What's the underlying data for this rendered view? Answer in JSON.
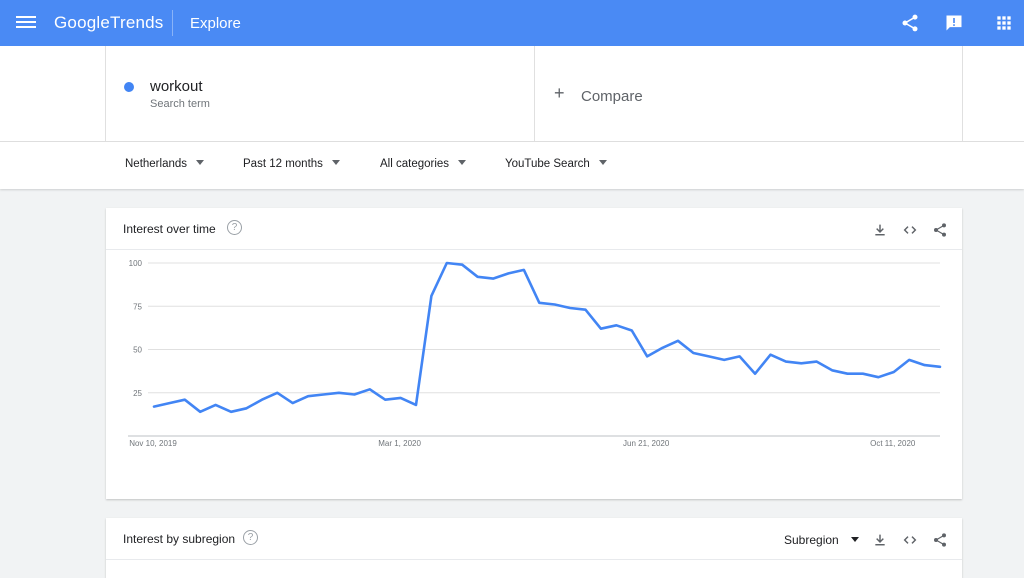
{
  "header": {
    "logo_google": "Google",
    "logo_trends": "Trends",
    "section": "Explore",
    "icons": [
      "menu-icon",
      "share-icon",
      "feedback-icon",
      "apps-icon"
    ],
    "bar_color": "#4a8af4"
  },
  "search": {
    "term": "workout",
    "term_sub": "Search term",
    "term_color": "#4285f4",
    "compare_label": "Compare"
  },
  "filters": {
    "region": "Netherlands",
    "time": "Past 12 months",
    "category": "All categories",
    "property": "YouTube Search"
  },
  "interest_over_time": {
    "title": "Interest over time",
    "help": "?",
    "icons": [
      "download-icon",
      "embed-icon",
      "share-icon"
    ]
  },
  "interest_by_subregion": {
    "title": "Interest by subregion",
    "help": "?",
    "selector": "Subregion",
    "icons": [
      "download-icon",
      "embed-icon",
      "share-icon"
    ]
  },
  "chart_data": {
    "type": "line",
    "title": "",
    "xlabel": "",
    "ylabel": "",
    "ylim": [
      0,
      100
    ],
    "yticks": [
      25,
      50,
      75,
      100
    ],
    "x_tick_labels": [
      "Nov 10, 2019",
      "Mar 1, 2020",
      "Jun 21, 2020",
      "Oct 11, 2020"
    ],
    "x_start": "2019-11-10",
    "x_step_days": 7,
    "grid": true,
    "series": [
      {
        "name": "workout",
        "color": "#4285f4",
        "values": [
          17,
          19,
          21,
          14,
          18,
          14,
          16,
          21,
          25,
          19,
          23,
          24,
          25,
          24,
          27,
          21,
          22,
          18,
          81,
          100,
          99,
          92,
          91,
          94,
          96,
          77,
          76,
          74,
          73,
          62,
          64,
          61,
          46,
          51,
          55,
          48,
          46,
          44,
          46,
          36,
          47,
          43,
          42,
          43,
          38,
          36,
          36,
          34,
          37,
          44,
          41,
          40
        ]
      }
    ]
  }
}
